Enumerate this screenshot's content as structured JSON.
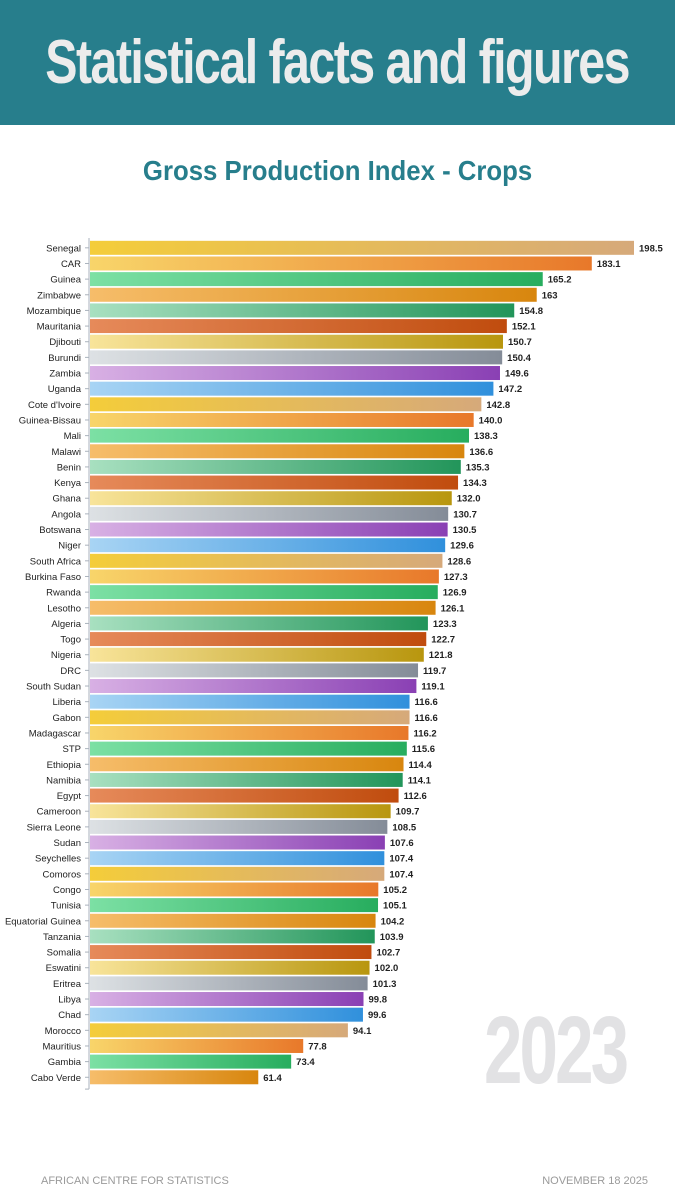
{
  "header": {
    "title": "Statistical facts and figures"
  },
  "year_label": "2023",
  "footer": {
    "left": "AFRICAN CENTRE FOR STATISTICS",
    "right": "NOVEMBER 18 2025"
  },
  "palette": [
    [
      "#f4cd3a",
      "#d6a97a"
    ],
    [
      "#f8d56a",
      "#e8782a"
    ],
    [
      "#7ce0a4",
      "#27ad5e"
    ],
    [
      "#f6bd6a",
      "#d8860e"
    ],
    [
      "#a8e0c0",
      "#22955a"
    ],
    [
      "#e68a5a",
      "#c04c0e"
    ],
    [
      "#f8e49a",
      "#b8960e"
    ],
    [
      "#dde1e4",
      "#848c98"
    ],
    [
      "#d8b0e4",
      "#8a40b4"
    ],
    [
      "#a8d4f4",
      "#3090dc"
    ]
  ],
  "chart_data": {
    "type": "bar",
    "orientation": "horizontal",
    "title": "Gross Production Index - Crops",
    "xlabel": "",
    "ylabel": "",
    "xlim": [
      0,
      198.5
    ],
    "grid": false,
    "legend": "none",
    "categories": [
      "Senegal",
      "CAR",
      "Guinea",
      "Zimbabwe",
      "Mozambique",
      "Mauritania",
      "Djibouti",
      "Burundi",
      "Zambia",
      "Uganda",
      "Cote d'Ivoire",
      "Guinea-Bissau",
      "Mali",
      "Malawi",
      "Benin",
      "Kenya",
      "Ghana",
      "Angola",
      "Botswana",
      "Niger",
      "South Africa",
      "Burkina Faso",
      "Rwanda",
      "Lesotho",
      "Algeria",
      "Togo",
      "Nigeria",
      "DRC",
      "South Sudan",
      "Liberia",
      "Gabon",
      "Madagascar",
      "STP",
      "Ethiopia",
      "Namibia",
      "Egypt",
      "Cameroon",
      "Sierra Leone",
      "Sudan",
      "Seychelles",
      "Comoros",
      "Congo",
      "Tunisia",
      "Equatorial Guinea",
      "Tanzania",
      "Somalia",
      "Eswatini",
      "Eritrea",
      "Libya",
      "Chad",
      "Morocco",
      "Mauritius",
      "Gambia",
      "Cabo Verde"
    ],
    "values": [
      198.5,
      183.1,
      165.2,
      163,
      154.8,
      152.1,
      150.7,
      150.4,
      149.6,
      147.2,
      142.8,
      140.0,
      138.3,
      136.6,
      135.3,
      134.3,
      132.0,
      130.7,
      130.5,
      129.6,
      128.6,
      127.3,
      126.9,
      126.1,
      123.3,
      122.7,
      121.8,
      119.7,
      119.1,
      116.6,
      116.6,
      116.2,
      115.6,
      114.4,
      114.1,
      112.6,
      109.7,
      108.5,
      107.6,
      107.4,
      107.4,
      105.2,
      105.1,
      104.2,
      103.9,
      102.7,
      102.0,
      101.3,
      99.8,
      99.6,
      94.1,
      77.8,
      73.4,
      61.4
    ],
    "data_labels": [
      "198.5",
      "183.1",
      "165.2",
      "163",
      "154.8",
      "152.1",
      "150.7",
      "150.4",
      "149.6",
      "147.2",
      "142.8",
      "140.0",
      "138.3",
      "136.6",
      "135.3",
      "134.3",
      "132.0",
      "130.7",
      "130.5",
      "129.6",
      "128.6",
      "127.3",
      "126.9",
      "126.1",
      "123.3",
      "122.7",
      "121.8",
      "119.7",
      "119.1",
      "116.6",
      "116.6",
      "116.2",
      "115.6",
      "114.4",
      "114.1",
      "112.6",
      "109.7",
      "108.5",
      "107.6",
      "107.4",
      "107.4",
      "105.2",
      "105.1",
      "104.2",
      "103.9",
      "102.7",
      "102.0",
      "101.3",
      "99.8",
      "99.6",
      "94.1",
      "77.8",
      "73.4",
      "61.4"
    ]
  }
}
